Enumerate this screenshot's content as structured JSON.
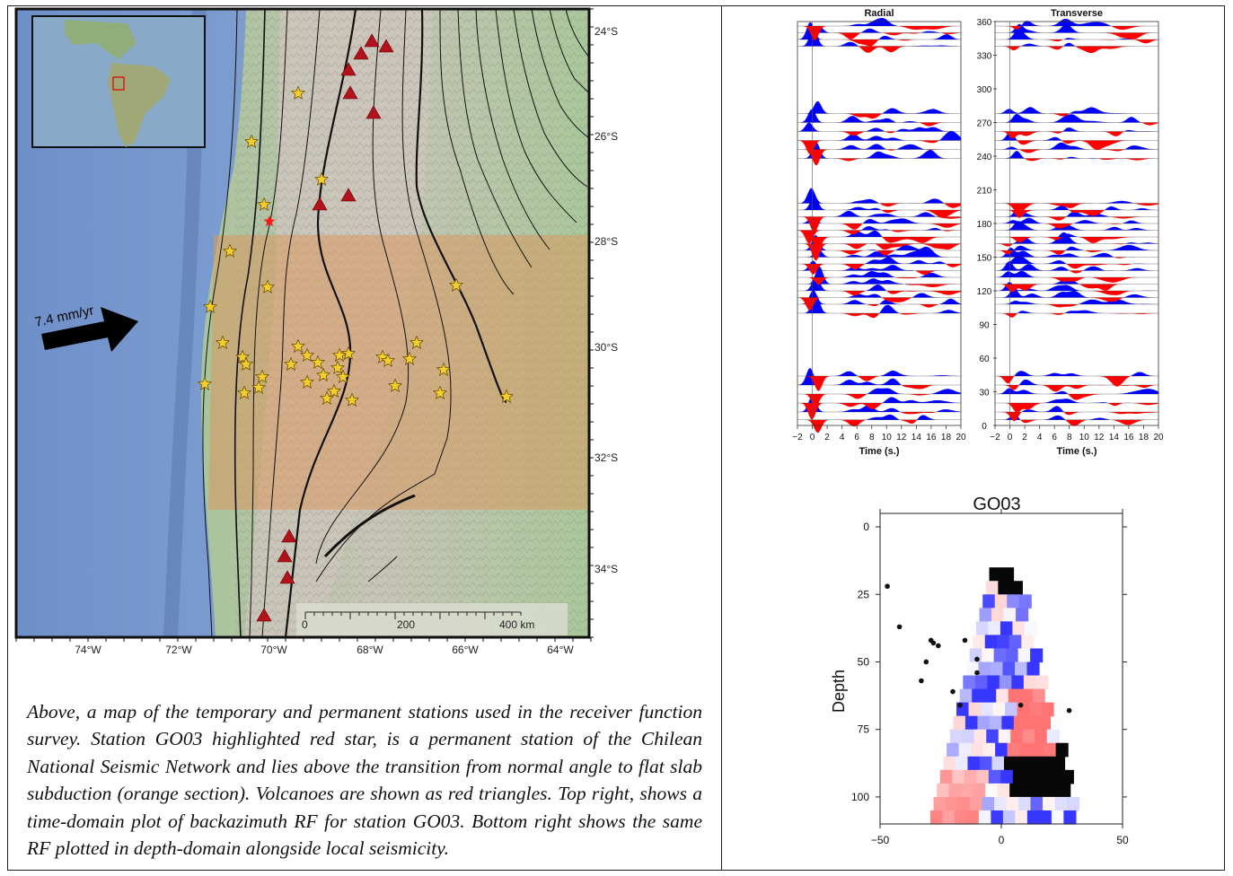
{
  "map": {
    "lat_labels": [
      "24°S",
      "26°S",
      "28°S",
      "30°S",
      "32°S",
      "34°S"
    ],
    "lon_labels": [
      "74°W",
      "72°W",
      "70°W",
      "68°W",
      "66°W",
      "64°W"
    ],
    "plate_rate": "7.4 mm/yr",
    "scale_bar": {
      "labels": [
        "0",
        "200",
        "400 km"
      ]
    },
    "highlighted_station_color": "#ff1a1a",
    "volcano_color": "#b3121c",
    "station_color": "#f5cd2c",
    "flat_slab_color": "#d9995e"
  },
  "caption": {
    "text": "Above, a map of the temporary and permanent stations used in the receiver function survey. Station GO03 highlighted red star, is a permanent station of the Chilean National Seismic Network and lies above the transition from normal angle to flat slab subduction (orange section). Volcanoes are shown as red triangles. Top right, shows a time-domain plot of backazimuth RF for station GO03. Bottom right shows the same RF plotted in depth-domain alongside local seismicity."
  },
  "chart_data": [
    {
      "type": "area",
      "title": "",
      "panels": [
        "Radial",
        "Transverse"
      ],
      "xlabel": "Time (s.)",
      "ylabel": "",
      "xlim": [
        -2,
        20
      ],
      "x_ticks": [
        -2,
        0,
        2,
        4,
        6,
        8,
        10,
        12,
        14,
        16,
        18,
        20
      ],
      "ylim": [
        0,
        360
      ],
      "y_ticks": [
        0,
        30,
        60,
        90,
        120,
        150,
        180,
        210,
        240,
        270,
        300,
        330,
        360
      ],
      "positive_color": "#0000ff",
      "negative_color": "#ff0000",
      "traces": {
        "backazimuths": [
          5,
          12,
          20,
          28,
          36,
          44,
          100,
          108,
          114,
          120,
          126,
          132,
          138,
          144,
          150,
          156,
          162,
          168,
          174,
          180,
          186,
          192,
          198,
          238,
          246,
          254,
          262,
          270,
          278,
          338,
          344,
          350,
          356
        ],
        "radial_peak_times": [
          0.3,
          5.6,
          8.1,
          10.2
        ],
        "transverse_peak_times": [
          0.5,
          2.2,
          6.8,
          8.2
        ]
      }
    },
    {
      "type": "heatmap",
      "title": "GO03",
      "xlabel": "",
      "ylabel": "Depth",
      "xlim": [
        -50,
        50
      ],
      "ylim": [
        110,
        -5
      ],
      "x_ticks": [
        -50,
        0,
        50
      ],
      "y_ticks": [
        0,
        25,
        50,
        75,
        100
      ],
      "colormap": "blue-white-red",
      "seismicity": [
        {
          "x": -47,
          "y": 22
        },
        {
          "x": -42,
          "y": 37
        },
        {
          "x": -33,
          "y": 57
        },
        {
          "x": -31,
          "y": 50
        },
        {
          "x": -29,
          "y": 42
        },
        {
          "x": -28,
          "y": 43
        },
        {
          "x": -26,
          "y": 44
        },
        {
          "x": -15,
          "y": 42
        },
        {
          "x": -10,
          "y": 49
        },
        {
          "x": -10,
          "y": 54
        },
        {
          "x": -20,
          "y": 61
        },
        {
          "x": -17,
          "y": 66
        },
        {
          "x": 8,
          "y": 66
        },
        {
          "x": 28,
          "y": 68
        }
      ]
    }
  ]
}
